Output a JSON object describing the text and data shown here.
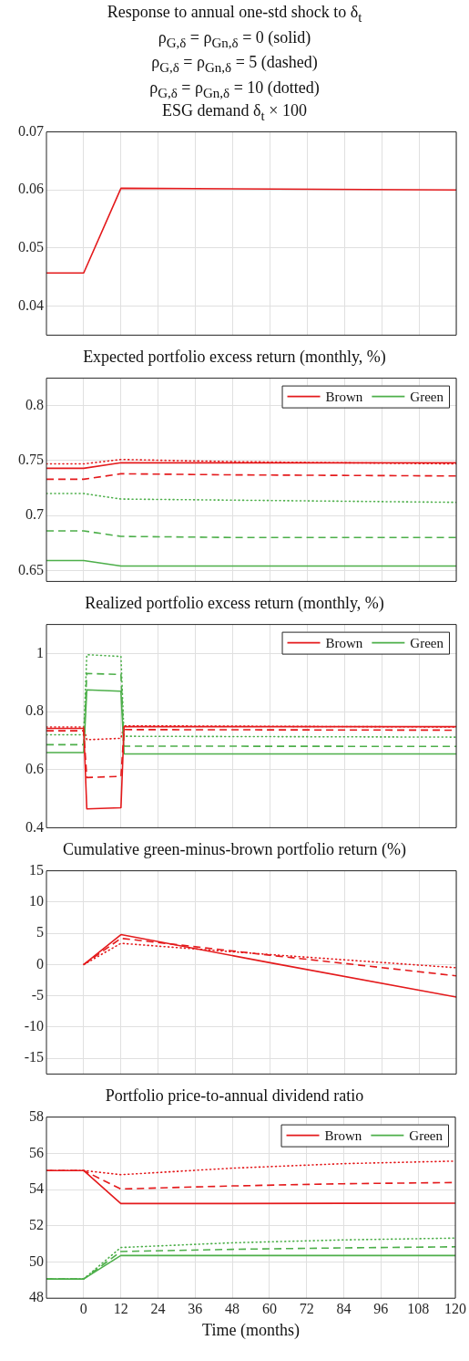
{
  "chart_data": [
    {
      "type": "other",
      "title": "Response to annual one-std shock to δ$_{t}$",
      "annotations": [
        "ρ$_{G,δ}$ = ρ$_{Gn,δ}$ = 0 (solid)",
        "ρ$_{G,δ}$ = ρ$_{Gn,δ}$ = 5 (dashed)",
        "ρ$_{G,δ}$ = ρ$_{Gn,δ}$ = 10 (dotted)"
      ]
    },
    {
      "type": "line",
      "title": "ESG demand δ$_{t}$ × 100",
      "x": [
        -12,
        0,
        12,
        120
      ],
      "xlim": [
        -12,
        120
      ],
      "xticks": [
        0,
        12,
        24,
        36,
        48,
        60,
        72,
        84,
        96,
        108,
        120
      ],
      "ylim": [
        0.035,
        0.07
      ],
      "yticks": [
        0.04,
        0.05,
        0.06,
        0.07
      ],
      "grid": true,
      "tick_labels": "y",
      "series": [
        {
          "color": "#e41a1c",
          "line_style": "solid",
          "values": [
            0.0457,
            0.0457,
            0.0603,
            0.06
          ]
        }
      ]
    },
    {
      "type": "line",
      "title": "Expected portfolio excess return (monthly, %)",
      "x": [
        -12,
        0,
        12,
        48,
        120
      ],
      "xlim": [
        -12,
        120
      ],
      "xticks": [
        0,
        12,
        24,
        36,
        48,
        60,
        72,
        84,
        96,
        108,
        120
      ],
      "ylim": [
        0.64,
        0.825
      ],
      "yticks": [
        0.65,
        0.7,
        0.75,
        0.8
      ],
      "grid": true,
      "tick_labels": "y",
      "legend": "top right",
      "series": [
        {
          "name": "Brown",
          "color": "#e41a1c",
          "line_style": "solid",
          "values": [
            0.743,
            0.743,
            0.748,
            0.748,
            0.748
          ]
        },
        {
          "name": "Green",
          "color": "#4daf4a",
          "line_style": "solid",
          "values": [
            0.659,
            0.659,
            0.654,
            0.654,
            0.654
          ]
        },
        {
          "color": "#e41a1c",
          "line_style": "dashed",
          "values": [
            0.733,
            0.733,
            0.738,
            0.737,
            0.736
          ]
        },
        {
          "color": "#e41a1c",
          "line_style": "dotted",
          "values": [
            0.747,
            0.747,
            0.751,
            0.749,
            0.747
          ]
        },
        {
          "color": "#4daf4a",
          "line_style": "dashed",
          "values": [
            0.686,
            0.686,
            0.681,
            0.68,
            0.68
          ]
        },
        {
          "color": "#4daf4a",
          "line_style": "dotted",
          "values": [
            0.72,
            0.72,
            0.715,
            0.714,
            0.712
          ]
        }
      ]
    },
    {
      "type": "line",
      "title": "Realized portfolio excess return (monthly, %)",
      "x": [
        -12,
        0,
        1,
        12,
        13,
        120
      ],
      "xlim": [
        -12,
        120
      ],
      "xticks": [
        0,
        12,
        24,
        36,
        48,
        60,
        72,
        84,
        96,
        108,
        120
      ],
      "ylim": [
        0.4,
        1.1
      ],
      "yticks": [
        0.4,
        0.6,
        0.8,
        1
      ],
      "grid": true,
      "tick_labels": "y",
      "legend": "top right",
      "series": [
        {
          "name": "Brown",
          "color": "#e41a1c",
          "line_style": "solid",
          "values": [
            0.742,
            0.742,
            0.465,
            0.469,
            0.748,
            0.748
          ]
        },
        {
          "name": "Green",
          "color": "#4daf4a",
          "line_style": "solid",
          "values": [
            0.659,
            0.659,
            0.875,
            0.87,
            0.654,
            0.654
          ]
        },
        {
          "color": "#e41a1c",
          "line_style": "dashed",
          "values": [
            0.734,
            0.734,
            0.573,
            0.577,
            0.738,
            0.736
          ]
        },
        {
          "color": "#e41a1c",
          "line_style": "dotted",
          "values": [
            0.747,
            0.747,
            0.703,
            0.708,
            0.751,
            0.747
          ]
        },
        {
          "color": "#4daf4a",
          "line_style": "dashed",
          "values": [
            0.686,
            0.686,
            0.931,
            0.928,
            0.681,
            0.68
          ]
        },
        {
          "color": "#4daf4a",
          "line_style": "dotted",
          "values": [
            0.72,
            0.72,
            0.996,
            0.99,
            0.715,
            0.712
          ]
        }
      ]
    },
    {
      "type": "line",
      "title": "Cumulative green-minus-brown portfolio return (%)",
      "x": [
        0,
        12,
        60,
        120
      ],
      "xlim": [
        -12,
        120
      ],
      "xticks": [
        0,
        12,
        24,
        36,
        48,
        60,
        72,
        84,
        96,
        108,
        120
      ],
      "ylim": [
        -17.5,
        15
      ],
      "yticks": [
        -15,
        -10,
        -5,
        0,
        5,
        10,
        15
      ],
      "grid": true,
      "tick_labels": "y",
      "series": [
        {
          "color": "#e41a1c",
          "line_style": "solid",
          "values": [
            0,
            4.8,
            0.3,
            -5.2
          ]
        },
        {
          "color": "#e41a1c",
          "line_style": "dashed",
          "values": [
            0,
            4.2,
            1.5,
            -1.8
          ]
        },
        {
          "color": "#e41a1c",
          "line_style": "dotted",
          "values": [
            0,
            3.4,
            1.6,
            -0.5
          ]
        }
      ]
    },
    {
      "type": "line",
      "title": "Portfolio price-to-annual dividend ratio",
      "xlabel": "Time (months)",
      "x": [
        -12,
        0,
        12,
        48,
        84,
        120
      ],
      "xlim": [
        -12,
        120
      ],
      "xticks": [
        0,
        12,
        24,
        36,
        48,
        60,
        72,
        84,
        96,
        108,
        120
      ],
      "ylim": [
        48,
        58
      ],
      "yticks": [
        48,
        50,
        52,
        54,
        56,
        58
      ],
      "grid": true,
      "legend": "top right",
      "series": [
        {
          "name": "Brown",
          "color": "#e41a1c",
          "line_style": "solid",
          "values": [
            55.05,
            55.05,
            53.23,
            53.23,
            53.24,
            53.25
          ]
        },
        {
          "name": "Green",
          "color": "#4daf4a",
          "line_style": "solid",
          "values": [
            49.06,
            49.06,
            50.36,
            50.36,
            50.36,
            50.36
          ]
        },
        {
          "color": "#e41a1c",
          "line_style": "dashed",
          "values": [
            55.05,
            55.05,
            54.03,
            54.2,
            54.32,
            54.39
          ]
        },
        {
          "color": "#e41a1c",
          "line_style": "dotted",
          "values": [
            55.05,
            55.05,
            54.82,
            55.18,
            55.43,
            55.57
          ]
        },
        {
          "color": "#4daf4a",
          "line_style": "dashed",
          "values": [
            49.06,
            49.06,
            50.58,
            50.7,
            50.78,
            50.84
          ]
        },
        {
          "color": "#4daf4a",
          "line_style": "dotted",
          "values": [
            49.06,
            49.06,
            50.8,
            51.06,
            51.22,
            51.32
          ]
        }
      ]
    }
  ]
}
